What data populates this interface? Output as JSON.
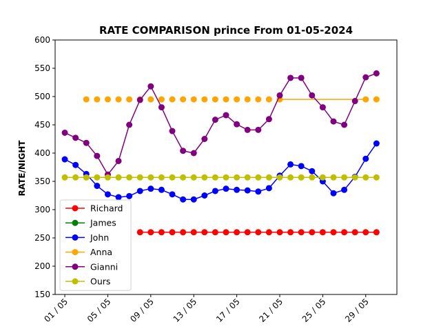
{
  "chart_data": {
    "type": "line",
    "title": "RATE COMPARISON prince From 01-05-2024",
    "xlabel": "",
    "ylabel": "RATE/NIGHT",
    "ylim": [
      150,
      600
    ],
    "yticks": [
      150,
      200,
      250,
      300,
      350,
      400,
      450,
      500,
      550,
      600
    ],
    "xlim": [
      -0.9,
      30.9
    ],
    "xticks": [
      0,
      4,
      8,
      12,
      16,
      20,
      24,
      28
    ],
    "xtick_labels": [
      "01 / 05",
      "05 / 05",
      "09 / 05",
      "13 / 05",
      "17 / 05",
      "21 / 05",
      "25 / 05",
      "29 / 05"
    ],
    "grid": false,
    "legend_position": "lower-left",
    "series": [
      {
        "name": "Richard",
        "color": "#ff0000",
        "x": [
          7,
          8,
          9,
          10,
          11,
          12,
          13,
          14,
          15,
          16,
          17,
          18,
          19,
          20,
          21,
          22,
          23,
          24,
          25,
          26,
          27,
          28,
          29
        ],
        "y": [
          260,
          260,
          260,
          260,
          260,
          260,
          260,
          260,
          260,
          260,
          260,
          260,
          260,
          260,
          260,
          260,
          260,
          260,
          260,
          260,
          260,
          260,
          260
        ]
      },
      {
        "name": "James",
        "color": "#008000",
        "x": [],
        "y": []
      },
      {
        "name": "John",
        "color": "#0000ff",
        "x": [
          0,
          1,
          2,
          3,
          4,
          5,
          6,
          7,
          8,
          9,
          10,
          11,
          12,
          13,
          14,
          15,
          16,
          17,
          18,
          19,
          20,
          21,
          22,
          23,
          24,
          25,
          26,
          27,
          28,
          29
        ],
        "y": [
          389,
          379,
          363,
          342,
          327,
          322,
          324,
          333,
          337,
          335,
          327,
          318,
          318,
          325,
          333,
          337,
          335,
          334,
          332,
          338,
          360,
          380,
          377,
          368,
          350,
          329,
          335,
          358,
          390,
          417
        ]
      },
      {
        "name": "Anna",
        "color": "#ffa500",
        "x": [
          2,
          3,
          4,
          5,
          6,
          7,
          8,
          9,
          10,
          11,
          12,
          13,
          14,
          15,
          16,
          17,
          18,
          19,
          20,
          28,
          29
        ],
        "y": [
          495,
          495,
          495,
          495,
          495,
          495,
          495,
          495,
          495,
          495,
          495,
          495,
          495,
          495,
          495,
          495,
          495,
          495,
          495,
          495,
          495
        ],
        "line_x": [
          20,
          28
        ],
        "line_y": [
          495,
          495
        ]
      },
      {
        "name": "Gianni",
        "color": "#800080",
        "x": [
          0,
          1,
          2,
          3,
          4,
          5,
          6,
          7,
          8,
          9,
          10,
          11,
          12,
          13,
          14,
          15,
          16,
          17,
          18,
          19,
          20,
          21,
          22,
          23,
          24,
          25,
          26,
          27,
          28,
          29
        ],
        "y": [
          436,
          427,
          418,
          395,
          362,
          386,
          450,
          494,
          518,
          481,
          439,
          404,
          400,
          425,
          459,
          467,
          451,
          441,
          441,
          460,
          502,
          533,
          533,
          502,
          481,
          456,
          450,
          492,
          534,
          541
        ]
      },
      {
        "name": "Ours",
        "color": "#bfbf00",
        "x": [
          0,
          1,
          2,
          3,
          4,
          5,
          6,
          7,
          8,
          9,
          10,
          11,
          12,
          13,
          14,
          15,
          16,
          17,
          18,
          19,
          20,
          21,
          22,
          23,
          24,
          25,
          26,
          27,
          28,
          29
        ],
        "y": [
          357,
          357,
          357,
          357,
          357,
          357,
          357,
          357,
          357,
          357,
          357,
          357,
          357,
          357,
          357,
          357,
          357,
          357,
          357,
          357,
          357,
          357,
          357,
          357,
          357,
          357,
          357,
          357,
          357,
          357
        ]
      }
    ]
  }
}
